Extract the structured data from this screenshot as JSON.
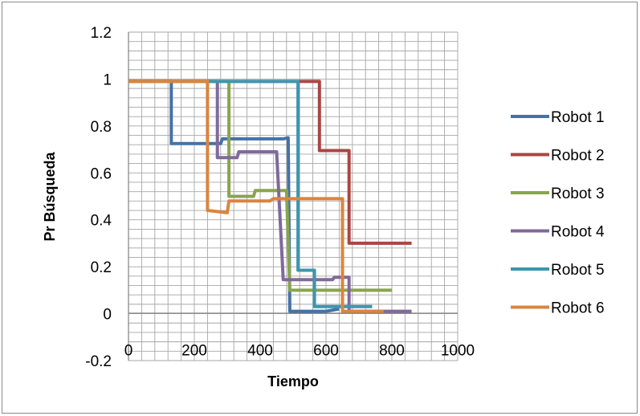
{
  "chart_data": {
    "type": "line",
    "title": "",
    "xlabel": "Tiempo",
    "ylabel": "Pr Búsqueda",
    "xlim": [
      0,
      1000
    ],
    "ylim": [
      -0.2,
      1.2
    ],
    "xticks": [
      0,
      200,
      400,
      600,
      800,
      1000
    ],
    "yticks": [
      -0.2,
      0,
      0.2,
      0.4,
      0.6,
      0.8,
      1,
      1.2
    ],
    "xtick_labels": [
      "0",
      "200",
      "400",
      "600",
      "800",
      "1000"
    ],
    "ytick_labels": [
      "-0.2",
      "0",
      "0.2",
      "0.4",
      "0.6",
      "0.8",
      "1",
      "1.2"
    ],
    "grid": true,
    "legend_position": "right",
    "series": [
      {
        "name": "Robot 1",
        "color": "#4572A7",
        "points": [
          [
            0,
            0.99
          ],
          [
            130,
            0.99
          ],
          [
            130,
            0.725
          ],
          [
            280,
            0.725
          ],
          [
            285,
            0.745
          ],
          [
            470,
            0.745
          ],
          [
            485,
            0.75
          ],
          [
            490,
            0.01
          ],
          [
            600,
            0.01
          ],
          [
            640,
            0.02
          ]
        ]
      },
      {
        "name": "Robot 2",
        "color": "#AA4643",
        "points": [
          [
            0,
            0.99
          ],
          [
            580,
            0.99
          ],
          [
            580,
            0.695
          ],
          [
            670,
            0.695
          ],
          [
            670,
            0.3
          ],
          [
            860,
            0.3
          ]
        ]
      },
      {
        "name": "Robot 3",
        "color": "#89A54E",
        "points": [
          [
            0,
            0.99
          ],
          [
            305,
            0.99
          ],
          [
            305,
            0.5
          ],
          [
            350,
            0.5
          ],
          [
            380,
            0.5
          ],
          [
            385,
            0.525
          ],
          [
            480,
            0.525
          ],
          [
            490,
            0.1
          ],
          [
            800,
            0.1
          ]
        ]
      },
      {
        "name": "Robot 4",
        "color": "#80699B",
        "points": [
          [
            0,
            0.99
          ],
          [
            270,
            0.99
          ],
          [
            270,
            0.665
          ],
          [
            330,
            0.665
          ],
          [
            335,
            0.69
          ],
          [
            450,
            0.69
          ],
          [
            470,
            0.145
          ],
          [
            620,
            0.145
          ],
          [
            625,
            0.155
          ],
          [
            670,
            0.155
          ],
          [
            670,
            0.01
          ],
          [
            860,
            0.01
          ]
        ]
      },
      {
        "name": "Robot 5",
        "color": "#3D96AE",
        "points": [
          [
            0,
            0.99
          ],
          [
            515,
            0.99
          ],
          [
            515,
            0.185
          ],
          [
            565,
            0.185
          ],
          [
            565,
            0.03
          ],
          [
            740,
            0.03
          ]
        ]
      },
      {
        "name": "Robot 6",
        "color": "#DB843D",
        "points": [
          [
            0,
            0.99
          ],
          [
            240,
            0.99
          ],
          [
            240,
            0.44
          ],
          [
            300,
            0.43
          ],
          [
            305,
            0.48
          ],
          [
            430,
            0.48
          ],
          [
            440,
            0.49
          ],
          [
            650,
            0.49
          ],
          [
            650,
            0.01
          ],
          [
            775,
            0.01
          ]
        ]
      }
    ]
  }
}
